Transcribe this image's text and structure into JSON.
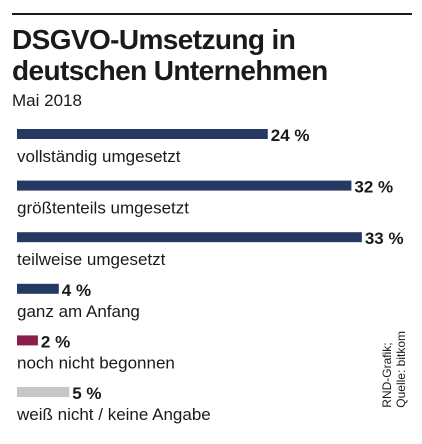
{
  "chart_data": {
    "type": "bar",
    "orientation": "horizontal",
    "title": "DSGVO-Umsetzung in deutschen Unternehmen",
    "subtitle": "Mai 2018",
    "categories": [
      "vollständig umgesetzt",
      "größtenteils umgesetzt",
      "teilweise umgesetzt",
      "ganz am Anfang",
      "noch nicht begonnen",
      "weiß nicht / keine Angabe"
    ],
    "values": [
      24,
      32,
      33,
      4,
      2,
      5
    ],
    "value_labels": [
      "24 %",
      "32 %",
      "33 %",
      "4 %",
      "2 %",
      "5 %"
    ],
    "colors": [
      "#253a63",
      "#253a63",
      "#253a63",
      "#253a63",
      "#8a1f4c",
      "#c6c6c6"
    ],
    "unit": "%",
    "legend": "none",
    "grid": false
  },
  "source": {
    "line1": "RND-Grafik;",
    "line2": "Quelle: bitkom"
  }
}
